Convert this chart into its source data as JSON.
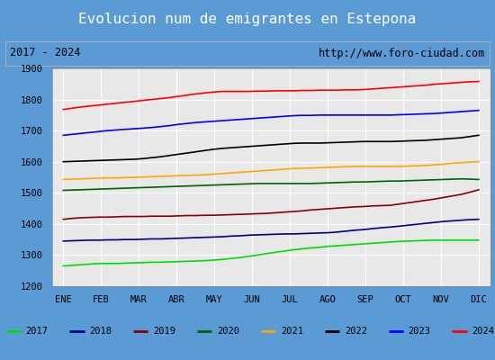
{
  "title": "Evolucion num de emigrantes en Estepona",
  "subtitle_left": "2017 - 2024",
  "subtitle_right": "http://www.foro-ciudad.com",
  "x_labels": [
    "ENE",
    "FEB",
    "MAR",
    "ABR",
    "MAY",
    "JUN",
    "JUL",
    "AGO",
    "SEP",
    "OCT",
    "NOV",
    "DIC"
  ],
  "ylim": [
    1200,
    1900
  ],
  "yticks": [
    1200,
    1300,
    1400,
    1500,
    1600,
    1700,
    1800,
    1900
  ],
  "series": {
    "2017": {
      "color": "#00dd00",
      "data": [
        1265,
        1267,
        1269,
        1271,
        1273,
        1273,
        1273,
        1274,
        1275,
        1276,
        1277,
        1277,
        1278,
        1279,
        1280,
        1281,
        1282,
        1284,
        1286,
        1289,
        1292,
        1296,
        1300,
        1305,
        1309,
        1313,
        1317,
        1320,
        1323,
        1325,
        1328,
        1330,
        1332,
        1334,
        1336,
        1338,
        1340,
        1342,
        1344,
        1345,
        1346,
        1347,
        1348,
        1348,
        1348,
        1348,
        1348,
        1348
      ]
    },
    "2018": {
      "color": "#00008b",
      "data": [
        1345,
        1346,
        1347,
        1348,
        1348,
        1349,
        1349,
        1350,
        1350,
        1351,
        1352,
        1352,
        1353,
        1354,
        1355,
        1356,
        1357,
        1358,
        1359,
        1361,
        1362,
        1364,
        1365,
        1366,
        1367,
        1368,
        1368,
        1369,
        1370,
        1371,
        1372,
        1374,
        1377,
        1380,
        1382,
        1385,
        1388,
        1390,
        1393,
        1396,
        1399,
        1402,
        1405,
        1408,
        1410,
        1412,
        1414,
        1415
      ]
    },
    "2019": {
      "color": "#8b0000",
      "data": [
        1415,
        1418,
        1420,
        1421,
        1422,
        1422,
        1423,
        1424,
        1424,
        1424,
        1425,
        1425,
        1425,
        1426,
        1427,
        1427,
        1428,
        1428,
        1429,
        1430,
        1431,
        1432,
        1433,
        1434,
        1436,
        1438,
        1440,
        1442,
        1445,
        1447,
        1449,
        1451,
        1453,
        1455,
        1456,
        1458,
        1459,
        1460,
        1464,
        1468,
        1472,
        1476,
        1480,
        1485,
        1490,
        1495,
        1502,
        1510
      ]
    },
    "2020": {
      "color": "#006400",
      "data": [
        1508,
        1509,
        1510,
        1511,
        1512,
        1513,
        1514,
        1515,
        1516,
        1517,
        1518,
        1519,
        1520,
        1521,
        1522,
        1523,
        1524,
        1525,
        1526,
        1527,
        1528,
        1529,
        1530,
        1530,
        1530,
        1530,
        1530,
        1530,
        1530,
        1531,
        1532,
        1533,
        1534,
        1535,
        1535,
        1536,
        1537,
        1538,
        1538,
        1539,
        1540,
        1541,
        1542,
        1543,
        1544,
        1545,
        1544,
        1543
      ]
    },
    "2021": {
      "color": "#ffa500",
      "data": [
        1543,
        1544,
        1545,
        1546,
        1547,
        1548,
        1548,
        1549,
        1550,
        1551,
        1552,
        1553,
        1554,
        1555,
        1556,
        1557,
        1558,
        1560,
        1562,
        1564,
        1566,
        1568,
        1570,
        1572,
        1574,
        1576,
        1578,
        1579,
        1580,
        1581,
        1582,
        1583,
        1584,
        1585,
        1585,
        1585,
        1585,
        1585,
        1585,
        1586,
        1587,
        1588,
        1590,
        1592,
        1595,
        1597,
        1599,
        1600
      ]
    },
    "2022": {
      "color": "#000000",
      "data": [
        1600,
        1601,
        1602,
        1603,
        1604,
        1605,
        1606,
        1607,
        1608,
        1610,
        1613,
        1616,
        1620,
        1624,
        1628,
        1632,
        1636,
        1640,
        1643,
        1645,
        1647,
        1649,
        1651,
        1653,
        1655,
        1657,
        1659,
        1660,
        1660,
        1660,
        1661,
        1662,
        1663,
        1664,
        1665,
        1665,
        1665,
        1665,
        1666,
        1667,
        1668,
        1669,
        1671,
        1673,
        1675,
        1677,
        1681,
        1685
      ]
    },
    "2023": {
      "color": "#0000ff",
      "data": [
        1685,
        1688,
        1691,
        1694,
        1697,
        1700,
        1702,
        1704,
        1706,
        1708,
        1710,
        1713,
        1716,
        1720,
        1723,
        1726,
        1728,
        1730,
        1732,
        1734,
        1736,
        1738,
        1740,
        1742,
        1744,
        1746,
        1748,
        1749,
        1749,
        1750,
        1750,
        1750,
        1750,
        1750,
        1750,
        1750,
        1750,
        1750,
        1751,
        1752,
        1753,
        1754,
        1755,
        1757,
        1759,
        1761,
        1763,
        1765
      ]
    },
    "2024": {
      "color": "#ff0000",
      "data": [
        1768,
        1772,
        1776,
        1779,
        1782,
        1785,
        1788,
        1791,
        1794,
        1797,
        1800,
        1803,
        1806,
        1810,
        1814,
        1818,
        1821,
        1824,
        1826,
        1826,
        1826,
        1826,
        1827,
        1827,
        1828,
        1828,
        1828,
        1829,
        1829,
        1830,
        1830,
        1830,
        1831,
        1831,
        1832,
        1834,
        1836,
        1838,
        1840,
        1842,
        1844,
        1846,
        1849,
        1851,
        1853,
        1855,
        1857,
        1858
      ]
    }
  },
  "title_bg_color": "#5b9bd5",
  "title_text_color": "#ffffff",
  "subtitle_bg_color": "#ffffff",
  "plot_bg_color": "#e8e8e8",
  "grid_color": "#ffffff",
  "outer_bg_color": "#5b9bd5",
  "legend_border_color": "#5b9bd5"
}
